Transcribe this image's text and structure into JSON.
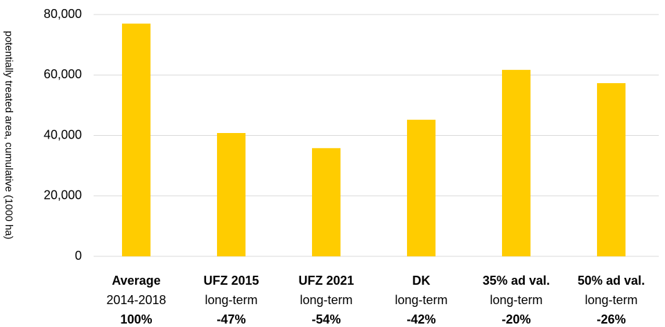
{
  "chart_data": {
    "type": "bar",
    "y_label": "potentially treated area, cumulative (1000 ha)",
    "categories": [
      "Average",
      "UFZ 2015",
      "UFZ 2021",
      "DK",
      "35% ad val.",
      "50% ad val."
    ],
    "subtitles": [
      "2014-2018",
      "long-term",
      "long-term",
      "long-term",
      "long-term",
      "long-term"
    ],
    "shares": [
      "100%",
      "-47%",
      "-54%",
      "-42%",
      "-20%",
      "-26%"
    ],
    "values": [
      77000,
      40800,
      35800,
      45200,
      61700,
      57300
    ],
    "color": "#ffcc00",
    "ylim": [
      0,
      80000
    ],
    "yticks": [
      {
        "value": 0,
        "label": "0"
      },
      {
        "value": 20000,
        "label": "20,000"
      },
      {
        "value": 40000,
        "label": "40,000"
      },
      {
        "value": 60000,
        "label": "60,000"
      },
      {
        "value": 80000,
        "label": "80,000"
      }
    ],
    "grid": true
  }
}
